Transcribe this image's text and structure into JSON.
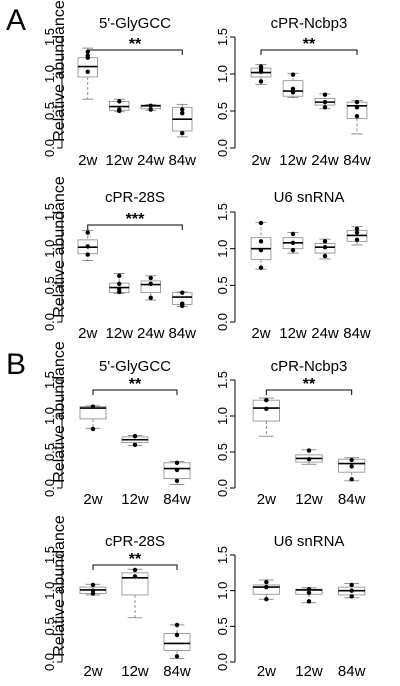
{
  "panels": [
    {
      "letter": "A",
      "ylabel": "Relative abundance"
    },
    {
      "letter": "B",
      "ylabel": "Relative abundance"
    }
  ],
  "chart_data": [
    {
      "panel": "A",
      "type": "box",
      "title": "5'-GlyGCC",
      "categories": [
        "2w",
        "12w",
        "24w",
        "84w"
      ],
      "yticks": [
        "0.0",
        "0.5",
        "1.0",
        "1.5"
      ],
      "ylim": [
        0,
        1.5
      ],
      "significance": "**",
      "boxes": [
        {
          "q1": 0.96,
          "median": 1.1,
          "q3": 1.22,
          "min": 0.66,
          "max": 1.35,
          "points": [
            1.22,
            1.25,
            1.3,
            1.03
          ]
        },
        {
          "q1": 0.51,
          "median": 0.56,
          "q3": 0.63,
          "min": 0.49,
          "max": 0.66,
          "points": [
            0.5,
            0.52,
            0.63
          ]
        },
        {
          "q1": 0.53,
          "median": 0.57,
          "q3": 0.58,
          "min": 0.51,
          "max": 0.59,
          "points": [
            0.57,
            0.52
          ]
        },
        {
          "q1": 0.23,
          "median": 0.39,
          "q3": 0.55,
          "min": 0.15,
          "max": 0.59,
          "points": [
            0.52,
            0.47,
            0.2
          ]
        }
      ]
    },
    {
      "panel": "A",
      "type": "box",
      "title": "cPR-Ncbp3",
      "categories": [
        "2w",
        "12w",
        "24w",
        "84w"
      ],
      "yticks": [
        "0.0",
        "0.5",
        "1.0",
        "1.5"
      ],
      "ylim": [
        0,
        1.5
      ],
      "significance": "**",
      "boxes": [
        {
          "q1": 0.96,
          "median": 1.02,
          "q3": 1.08,
          "min": 0.86,
          "max": 1.13,
          "points": [
            1.06,
            1.1,
            1.03,
            0.9
          ]
        },
        {
          "q1": 0.7,
          "median": 0.77,
          "q3": 0.91,
          "min": 0.68,
          "max": 1.01,
          "points": [
            0.99,
            0.8,
            0.75
          ]
        },
        {
          "q1": 0.58,
          "median": 0.62,
          "q3": 0.67,
          "min": 0.53,
          "max": 0.73,
          "points": [
            0.72,
            0.62,
            0.55
          ]
        },
        {
          "q1": 0.4,
          "median": 0.57,
          "q3": 0.62,
          "min": 0.19,
          "max": 0.64,
          "points": [
            0.62,
            0.55,
            0.43
          ]
        }
      ]
    },
    {
      "panel": "A",
      "type": "box",
      "title": "cPR-28S",
      "categories": [
        "2w",
        "12w",
        "24w",
        "84w"
      ],
      "yticks": [
        "0.0",
        "0.5",
        "1.0",
        "1.5"
      ],
      "ylim": [
        0,
        1.5
      ],
      "significance": "***",
      "boxes": [
        {
          "q1": 0.93,
          "median": 1.02,
          "q3": 1.12,
          "min": 0.84,
          "max": 1.25,
          "points": [
            1.22,
            1.03,
            0.92
          ]
        },
        {
          "q1": 0.4,
          "median": 0.47,
          "q3": 0.53,
          "min": 0.39,
          "max": 0.66,
          "points": [
            0.63,
            0.52,
            0.45,
            0.41
          ]
        },
        {
          "q1": 0.4,
          "median": 0.51,
          "q3": 0.56,
          "min": 0.3,
          "max": 0.63,
          "points": [
            0.6,
            0.52,
            0.33
          ]
        },
        {
          "q1": 0.24,
          "median": 0.34,
          "q3": 0.4,
          "min": 0.21,
          "max": 0.41,
          "points": [
            0.4,
            0.25,
            0.22
          ]
        }
      ]
    },
    {
      "panel": "A",
      "type": "box",
      "title": "U6 snRNA",
      "categories": [
        "2w",
        "12w",
        "24w",
        "84w"
      ],
      "yticks": [
        "0.0",
        "0.5",
        "1.0",
        "1.5"
      ],
      "ylim": [
        0,
        1.5
      ],
      "significance": "",
      "boxes": [
        {
          "q1": 0.85,
          "median": 1.0,
          "q3": 1.15,
          "min": 0.72,
          "max": 1.36,
          "points": [
            1.35,
            1.1,
            0.98,
            0.74
          ]
        },
        {
          "q1": 1.0,
          "median": 1.08,
          "q3": 1.15,
          "min": 0.94,
          "max": 1.22,
          "points": [
            1.2,
            1.08,
            0.98
          ]
        },
        {
          "q1": 0.94,
          "median": 1.02,
          "q3": 1.07,
          "min": 0.86,
          "max": 1.13,
          "points": [
            1.1,
            1.02,
            0.9
          ]
        },
        {
          "q1": 1.1,
          "median": 1.18,
          "q3": 1.25,
          "min": 1.05,
          "max": 1.3,
          "points": [
            1.27,
            1.22,
            1.12
          ]
        }
      ]
    },
    {
      "panel": "B",
      "type": "box",
      "title": "5'-GlyGCC",
      "categories": [
        "2w",
        "12w",
        "84w"
      ],
      "yticks": [
        "0.0",
        "0.5",
        "1.0",
        "1.5"
      ],
      "ylim": [
        0,
        1.5
      ],
      "significance": "**",
      "boxes": [
        {
          "q1": 0.96,
          "median": 1.11,
          "q3": 1.13,
          "min": 0.83,
          "max": 1.14,
          "points": [
            1.13,
            0.82
          ]
        },
        {
          "q1": 0.63,
          "median": 0.67,
          "q3": 0.71,
          "min": 0.59,
          "max": 0.73,
          "points": [
            0.72,
            0.6
          ]
        },
        {
          "q1": 0.13,
          "median": 0.27,
          "q3": 0.35,
          "min": 0.05,
          "max": 0.37,
          "points": [
            0.35,
            0.25,
            0.1
          ]
        }
      ]
    },
    {
      "panel": "B",
      "type": "box",
      "title": "cPR-Ncbp3",
      "categories": [
        "2w",
        "12w",
        "84w"
      ],
      "yticks": [
        "0.0",
        "0.5",
        "1.0",
        "1.5"
      ],
      "ylim": [
        0,
        1.5
      ],
      "significance": "**",
      "boxes": [
        {
          "q1": 0.93,
          "median": 1.11,
          "q3": 1.22,
          "min": 0.72,
          "max": 1.25,
          "points": [
            1.22,
            1.1
          ]
        },
        {
          "q1": 0.36,
          "median": 0.41,
          "q3": 0.46,
          "min": 0.33,
          "max": 0.53,
          "points": [
            0.52,
            0.4
          ]
        },
        {
          "q1": 0.22,
          "median": 0.34,
          "q3": 0.4,
          "min": 0.1,
          "max": 0.42,
          "points": [
            0.39,
            0.3,
            0.12
          ]
        }
      ]
    },
    {
      "panel": "B",
      "type": "box",
      "title": "cPR-28S",
      "categories": [
        "2w",
        "12w",
        "84w"
      ],
      "yticks": [
        "0.0",
        "0.5",
        "1.0",
        "1.5"
      ],
      "ylim": [
        0,
        1.5
      ],
      "significance": "**",
      "boxes": [
        {
          "q1": 0.96,
          "median": 1.01,
          "q3": 1.05,
          "min": 0.94,
          "max": 1.09,
          "points": [
            1.08,
            1.0,
            0.96
          ]
        },
        {
          "q1": 0.94,
          "median": 1.18,
          "q3": 1.25,
          "min": 0.62,
          "max": 1.3,
          "points": [
            1.29,
            1.2
          ]
        },
        {
          "q1": 0.16,
          "median": 0.26,
          "q3": 0.4,
          "min": 0.05,
          "max": 0.52,
          "points": [
            0.52,
            0.38,
            0.08
          ]
        }
      ]
    },
    {
      "panel": "B",
      "type": "box",
      "title": "U6 snRNA",
      "categories": [
        "2w",
        "12w",
        "84w"
      ],
      "yticks": [
        "0.0",
        "0.5",
        "1.0",
        "1.5"
      ],
      "ylim": [
        0,
        1.5
      ],
      "significance": "",
      "boxes": [
        {
          "q1": 0.95,
          "median": 1.05,
          "q3": 1.08,
          "min": 0.88,
          "max": 1.15,
          "points": [
            1.12,
            1.05,
            0.88
          ]
        },
        {
          "q1": 0.95,
          "median": 1.01,
          "q3": 1.02,
          "min": 0.83,
          "max": 1.04,
          "points": [
            1.02,
            0.97,
            0.85
          ]
        },
        {
          "q1": 0.94,
          "median": 1.0,
          "q3": 1.05,
          "min": 0.9,
          "max": 1.1,
          "points": [
            1.08,
            1.0,
            0.92
          ]
        }
      ]
    }
  ]
}
